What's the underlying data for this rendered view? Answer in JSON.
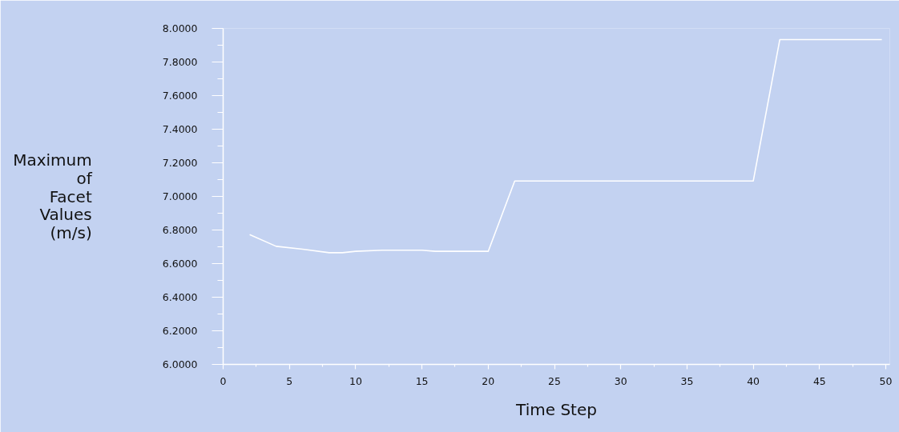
{
  "chart_data": {
    "type": "line",
    "xlabel": "Time Step",
    "ylabel": "Maximum of Facet Values (m/s)",
    "x": [
      2,
      4,
      6,
      8,
      9,
      10,
      12,
      15,
      16,
      20,
      22,
      40,
      42,
      49.7
    ],
    "series": [
      {
        "color": "#ffffff",
        "values": [
          6.773,
          6.703,
          6.686,
          6.665,
          6.665,
          6.673,
          6.68,
          6.68,
          6.673,
          6.673,
          7.092,
          7.092,
          7.933,
          7.933
        ]
      }
    ],
    "xlim": [
      0,
      50.3
    ],
    "ylim": [
      6,
      8
    ],
    "xticks": [
      0,
      {
        "value": 2.5,
        "label": null
      },
      5,
      {
        "value": 7.5,
        "label": null
      },
      10,
      {
        "value": 12.5,
        "label": null
      },
      15,
      {
        "value": 17.5,
        "label": null
      },
      20,
      {
        "value": 22.5,
        "label": null
      },
      25,
      {
        "value": 27.5,
        "label": null
      },
      30,
      {
        "value": 32.5,
        "label": null
      },
      35,
      {
        "value": 37.5,
        "label": null
      },
      40,
      {
        "value": 42.5,
        "label": null
      },
      45,
      {
        "value": 47.5,
        "label": null
      },
      50
    ],
    "yticks": [
      {
        "value": 6,
        "label": "6.0000"
      },
      {
        "value": 6.1,
        "label": null
      },
      {
        "value": 6.2,
        "label": "6.2000"
      },
      {
        "value": 6.3,
        "label": null
      },
      {
        "value": 6.4,
        "label": "6.4000"
      },
      {
        "value": 6.5,
        "label": null
      },
      {
        "value": 6.6,
        "label": "6.6000"
      },
      {
        "value": 6.7,
        "label": null
      },
      {
        "value": 6.8,
        "label": "6.8000"
      },
      {
        "value": 6.9,
        "label": null
      },
      {
        "value": 7,
        "label": "7.0000"
      },
      {
        "value": 7.1,
        "label": null
      },
      {
        "value": 7.2,
        "label": "7.2000"
      },
      {
        "value": 7.3,
        "label": null
      },
      {
        "value": 7.4,
        "label": "7.4000"
      },
      {
        "value": 7.5,
        "label": null
      },
      {
        "value": 7.6,
        "label": "7.6000"
      },
      {
        "value": 7.7,
        "label": null
      },
      {
        "value": 7.8,
        "label": "7.8000"
      },
      {
        "value": 7.9,
        "label": null
      },
      {
        "value": 8,
        "label": "8.0000"
      }
    ],
    "grid": false,
    "marker": "none",
    "line_style": "solid"
  }
}
